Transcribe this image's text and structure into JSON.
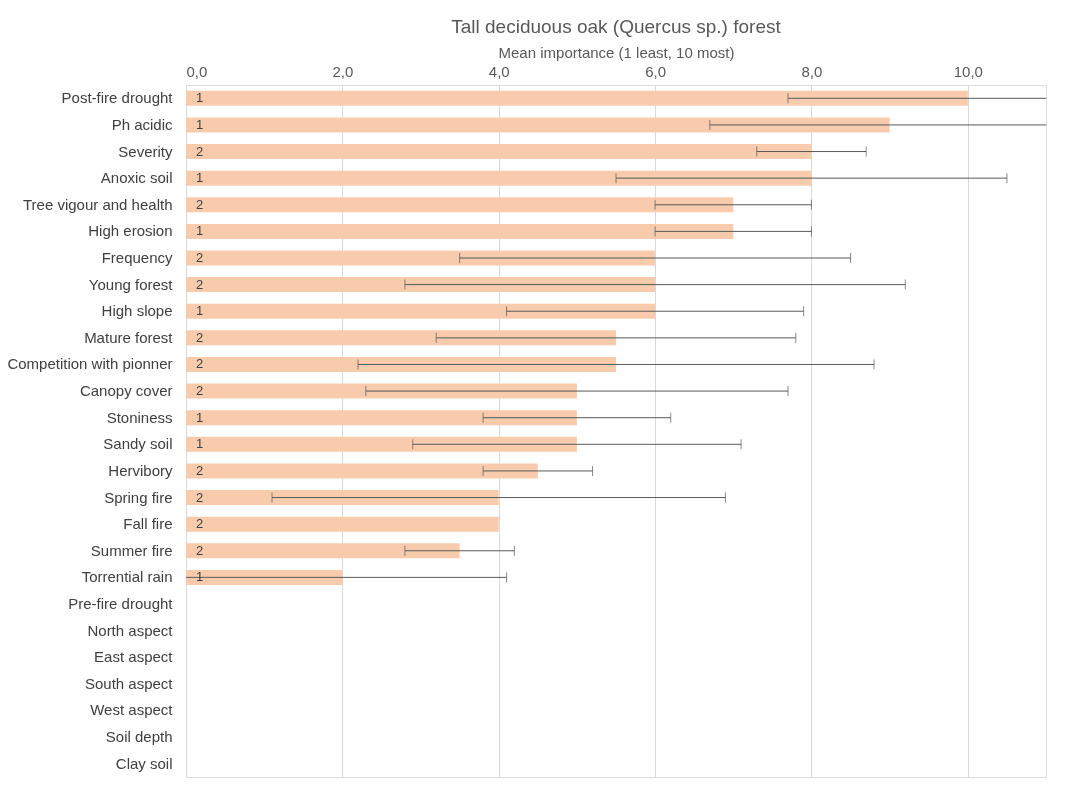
{
  "chart_data": {
    "type": "bar",
    "orientation": "horizontal",
    "title": "Tall deciduous oak (Quercus sp.) forest",
    "xlabel": "Mean importance (1 least, 10 most)",
    "categories": [
      "Post-fire drought",
      "Ph acidic",
      "Severity",
      "Anoxic soil",
      "Tree vigour and health",
      "High erosion",
      "Frequency",
      "Young forest",
      "High slope",
      "Mature forest",
      "Competition with pionner",
      "Canopy cover",
      "Stoniness",
      "Sandy soil",
      "Hervibory",
      "Spring fire",
      "Fall fire",
      "Summer fire",
      "Torrential rain",
      "Pre-fire drought",
      "North aspect",
      "East aspect",
      "South aspect",
      "West aspect",
      "Soil depth",
      "Clay soil"
    ],
    "values": [
      10,
      9,
      8,
      8,
      7,
      7,
      6,
      6,
      6,
      5.5,
      5.5,
      5,
      5,
      5,
      4.5,
      4,
      4,
      3.5,
      2,
      null,
      null,
      null,
      null,
      null,
      null,
      null
    ],
    "errors": [
      [
        7.7,
        11
      ],
      [
        6.7,
        11
      ],
      0.7,
      2.5,
      1,
      1,
      2.5,
      3.2,
      1.9,
      2.3,
      3.3,
      2.7,
      1.2,
      2.1,
      0.7,
      2.9,
      null,
      0.7,
      [
        0,
        4.1
      ],
      null,
      null,
      null,
      null,
      null,
      null,
      null
    ],
    "color": "#f8cbad",
    "xlim": [
      0,
      11
    ],
    "xticks": [
      {
        "value": 0,
        "label": "0,0"
      },
      {
        "value": 2,
        "label": "2,0"
      },
      {
        "value": 4,
        "label": "4,0"
      },
      {
        "value": 6,
        "label": "6,0"
      },
      {
        "value": 8,
        "label": "8,0"
      },
      {
        "value": 10,
        "label": "10,0"
      }
    ],
    "grid": "x",
    "annotations": [
      {
        "text": "1",
        "y": "Post-fire drought"
      },
      {
        "text": "1",
        "y": "Ph acidic"
      },
      {
        "text": "2",
        "y": "Severity"
      },
      {
        "text": "1",
        "y": "Anoxic soil"
      },
      {
        "text": "2",
        "y": "Tree vigour and health"
      },
      {
        "text": "1",
        "y": "High erosion"
      },
      {
        "text": "2",
        "y": "Frequency"
      },
      {
        "text": "2",
        "y": "Young forest"
      },
      {
        "text": "1",
        "y": "High slope"
      },
      {
        "text": "2",
        "y": "Mature forest"
      },
      {
        "text": "2",
        "y": "Competition with pionner"
      },
      {
        "text": "2",
        "y": "Canopy cover"
      },
      {
        "text": "1",
        "y": "Stoniness"
      },
      {
        "text": "1",
        "y": "Sandy soil"
      },
      {
        "text": "2",
        "y": "Hervibory"
      },
      {
        "text": "2",
        "y": "Spring fire"
      },
      {
        "text": "2",
        "y": "Fall fire"
      },
      {
        "text": "2",
        "y": "Summer fire"
      },
      {
        "text": "1",
        "y": "Torrential rain"
      }
    ]
  }
}
